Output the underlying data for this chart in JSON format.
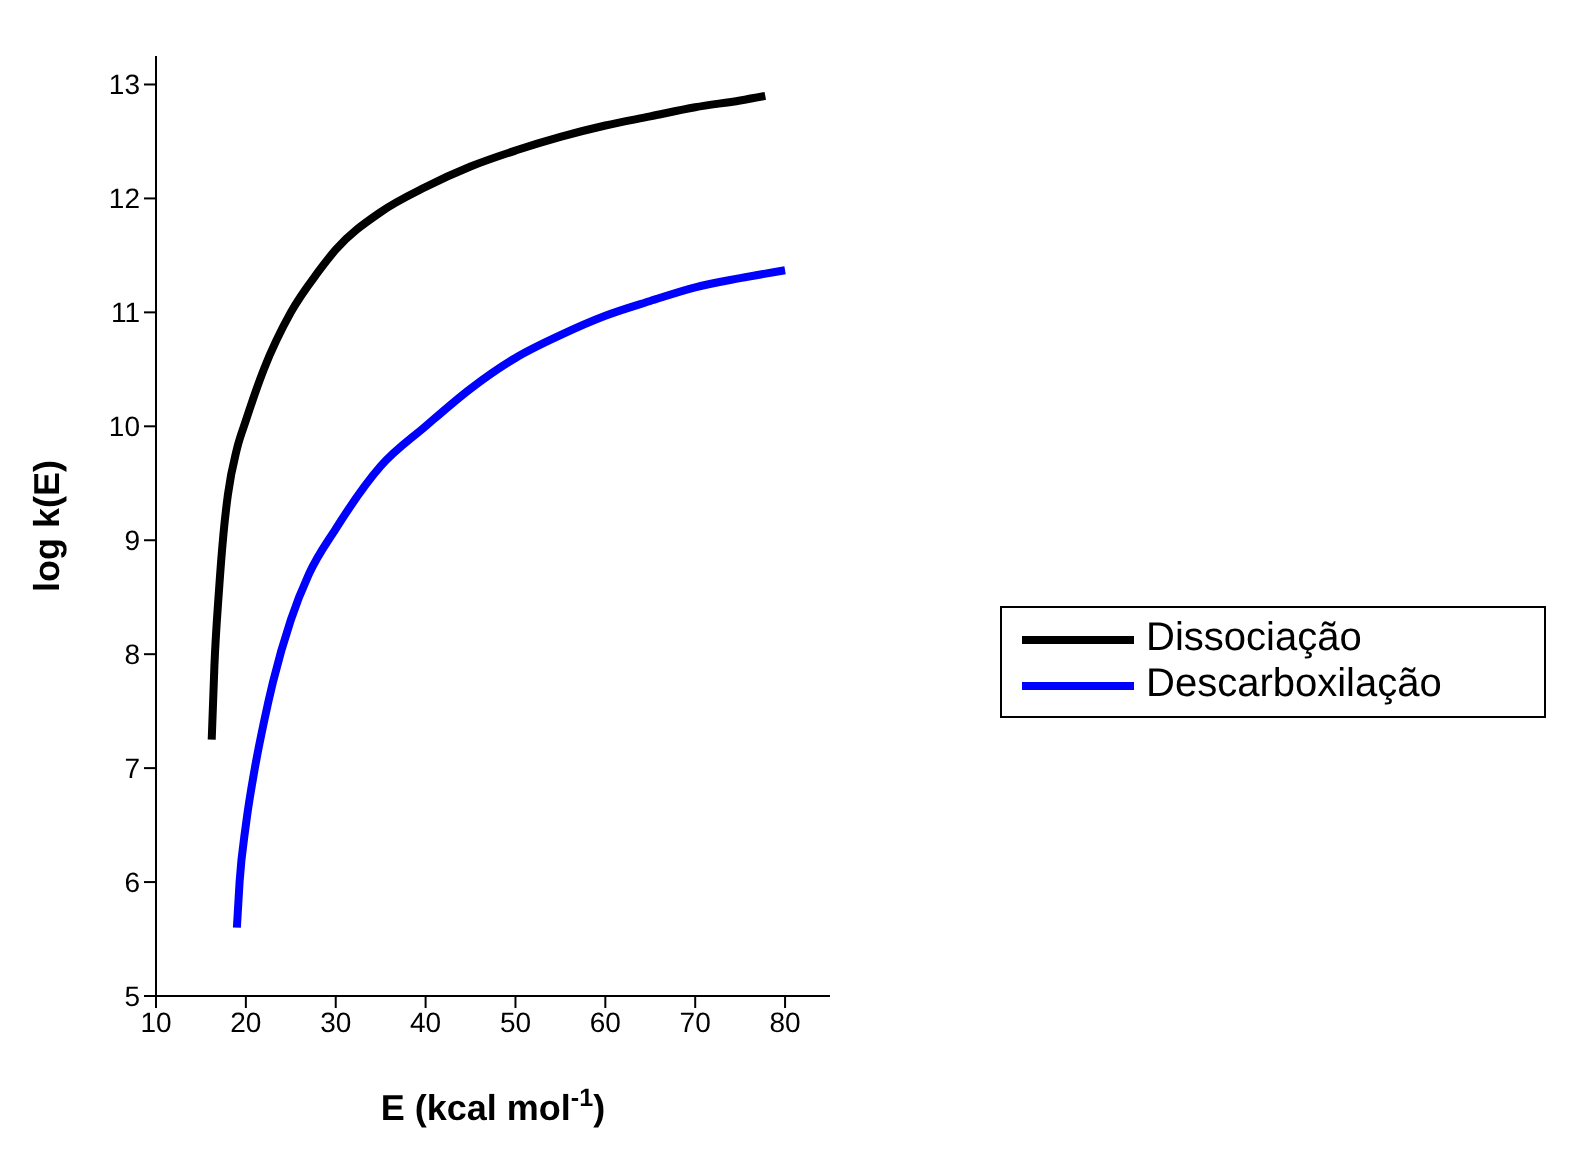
{
  "chart_data": {
    "type": "line",
    "xlabel": "E (kcal mol$^{-1}$)",
    "ylabel": "log k(E)",
    "xlim": [
      10,
      85
    ],
    "ylim": [
      5,
      13.25
    ],
    "xticks": [
      10,
      20,
      30,
      40,
      50,
      60,
      70,
      80
    ],
    "yticks": [
      5,
      6,
      7,
      8,
      9,
      10,
      11,
      12,
      13
    ],
    "grid": false,
    "legend": "right",
    "marker": "none",
    "line_style": "solid",
    "series": [
      {
        "name": "Dissociação",
        "color": "#000000",
        "x": [
          16.2,
          16.5,
          17,
          17.5,
          18,
          19,
          20,
          22,
          25,
          28,
          30,
          35,
          40,
          45,
          50,
          55,
          60,
          65,
          70,
          75,
          77.8
        ],
        "values": [
          7.25,
          7.9,
          8.55,
          9.05,
          9.4,
          9.8,
          10.05,
          10.5,
          11.0,
          11.35,
          11.55,
          11.88,
          12.1,
          12.28,
          12.42,
          12.54,
          12.64,
          12.72,
          12.8,
          12.86,
          12.9
        ]
      },
      {
        "name": "Descarboxilação",
        "color": "#0000ff",
        "x": [
          19,
          19.3,
          20,
          21,
          22,
          23,
          25,
          27,
          30,
          35,
          40,
          45,
          50,
          55,
          60,
          65,
          70,
          75,
          80
        ],
        "values": [
          5.6,
          6.0,
          6.5,
          7.0,
          7.4,
          7.75,
          8.3,
          8.7,
          9.1,
          9.65,
          10.0,
          10.33,
          10.6,
          10.8,
          10.97,
          11.1,
          11.22,
          11.3,
          11.37
        ]
      }
    ]
  }
}
